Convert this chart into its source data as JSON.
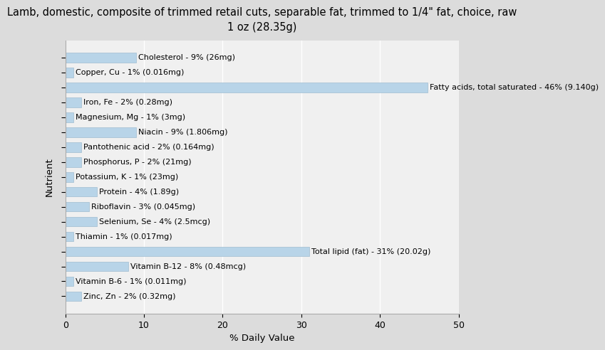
{
  "title": "Lamb, domestic, composite of trimmed retail cuts, separable fat, trimmed to 1/4\" fat, choice, raw\n1 oz (28.35g)",
  "xlabel": "% Daily Value",
  "ylabel": "Nutrient",
  "xlim": [
    0,
    50
  ],
  "background_color": "#dcdcdc",
  "plot_background": "#f0f0f0",
  "bar_color": "#b8d4e8",
  "bar_edge_color": "#a0bcd0",
  "nutrients": [
    "Cholesterol - 9% (26mg)",
    "Copper, Cu - 1% (0.016mg)",
    "Fatty acids, total saturated - 46% (9.140g)",
    "Iron, Fe - 2% (0.28mg)",
    "Magnesium, Mg - 1% (3mg)",
    "Niacin - 9% (1.806mg)",
    "Pantothenic acid - 2% (0.164mg)",
    "Phosphorus, P - 2% (21mg)",
    "Potassium, K - 1% (23mg)",
    "Protein - 4% (1.89g)",
    "Riboflavin - 3% (0.045mg)",
    "Selenium, Se - 4% (2.5mcg)",
    "Thiamin - 1% (0.017mg)",
    "Total lipid (fat) - 31% (20.02g)",
    "Vitamin B-12 - 8% (0.48mcg)",
    "Vitamin B-6 - 1% (0.011mg)",
    "Zinc, Zn - 2% (0.32mg)"
  ],
  "values": [
    9,
    1,
    46,
    2,
    1,
    9,
    2,
    2,
    1,
    4,
    3,
    4,
    1,
    31,
    8,
    1,
    2
  ],
  "title_fontsize": 10.5,
  "axis_label_fontsize": 9.5,
  "tick_fontsize": 9,
  "bar_label_fontsize": 8.0,
  "bar_height": 0.65,
  "xticks": [
    0,
    10,
    20,
    30,
    40,
    50
  ]
}
